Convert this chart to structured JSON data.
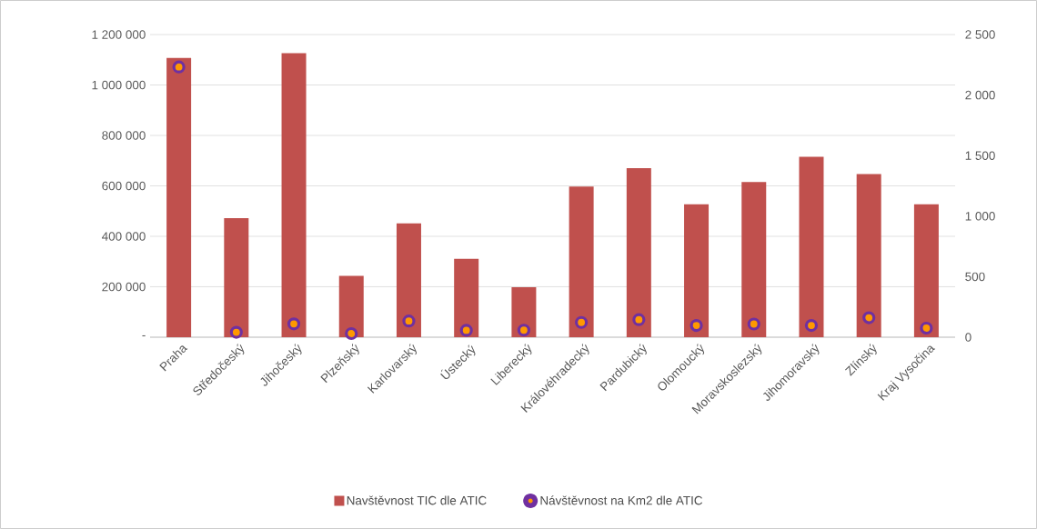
{
  "chart_data": {
    "type": "bar",
    "categories": [
      "Praha",
      "Středočeský",
      "Jihočeský",
      "Plzeňský",
      "Karlovarský",
      "Ústecký",
      "Liberecký",
      "Královéhradecký",
      "Pardubický",
      "Olomoucký",
      "Moravskoslezský",
      "Jihomoravský",
      "Zlínský",
      "Kraj Vysočina"
    ],
    "series": [
      {
        "name": "Navštěvnost TIC dle ATIC",
        "color": "#c0504d",
        "values": [
          1107000,
          472000,
          1126000,
          243000,
          451000,
          311000,
          198000,
          597000,
          670000,
          527000,
          615000,
          715000,
          647000,
          527000
        ]
      },
      {
        "name": "Návštěvnost na Km2 dle ATIC",
        "type": "scatter",
        "axis": "y2",
        "color": "#7030a0",
        "marker": "circle",
        "values": [
          2232,
          41,
          110,
          30,
          134,
          57,
          58,
          122,
          145,
          97,
          109,
          97,
          161,
          75
        ]
      }
    ],
    "ylim": [
      0,
      1200000
    ],
    "yticks": [
      {
        "value": 0,
        "label": "-"
      },
      {
        "value": 200000,
        "label": "200 000"
      },
      {
        "value": 400000,
        "label": "400 000"
      },
      {
        "value": 600000,
        "label": "600 000"
      },
      {
        "value": 800000,
        "label": "800 000"
      },
      {
        "value": 1000000,
        "label": "1 000 000"
      },
      {
        "value": 1200000,
        "label": "1 200 000"
      }
    ],
    "y2lim": [
      0,
      2500
    ],
    "y2ticks": [
      0,
      500,
      {
        "value": 1000,
        "label": "1 000"
      },
      {
        "value": 1500,
        "label": "1 500"
      },
      {
        "value": 2000,
        "label": "2 000"
      },
      {
        "value": 2500,
        "label": "2 500"
      }
    ],
    "grid": "y",
    "legend": "bottom"
  }
}
